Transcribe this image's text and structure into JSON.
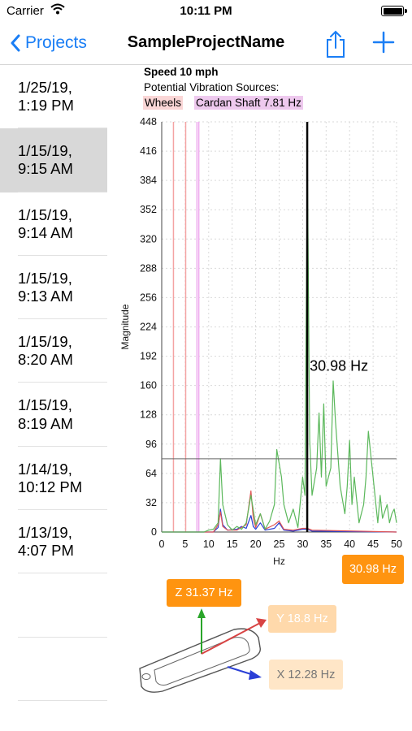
{
  "status_bar": {
    "carrier": "Carrier",
    "time": "10:11 PM"
  },
  "nav": {
    "back_label": "Projects",
    "title": "SampleProjectName"
  },
  "sidebar": {
    "items": [
      {
        "label": "1/25/19,\n1:19 PM",
        "selected": false
      },
      {
        "label": "1/15/19,\n9:15 AM",
        "selected": true
      },
      {
        "label": "1/15/19,\n9:14 AM",
        "selected": false
      },
      {
        "label": "1/15/19,\n9:13 AM",
        "selected": false
      },
      {
        "label": "1/15/19,\n8:20 AM",
        "selected": false
      },
      {
        "label": "1/15/19,\n8:19 AM",
        "selected": false
      },
      {
        "label": "1/14/19,\n10:12 PM",
        "selected": false
      },
      {
        "label": "1/13/19,\n4:07 PM",
        "selected": false
      }
    ]
  },
  "chart_header": {
    "speed": "Speed 10 mph",
    "sources_label": "Potential Vibration Sources:",
    "wheels": "Wheels",
    "cardan": "Cardan Shaft 7.81 Hz"
  },
  "badges": {
    "main": "30.98 Hz",
    "z": "Z 31.37 Hz",
    "y": "Y 18.8 Hz",
    "x": "X 12.28 Hz"
  },
  "colors": {
    "accent": "#1a7ef5",
    "orange": "#ff9410",
    "series_green": "#5cb85c",
    "series_red": "#e05555",
    "series_blue": "#2a3fd6",
    "wheel_line": "#f4a3a3",
    "cardan_line": "#eeaaee"
  },
  "chart_data": {
    "type": "line",
    "xlabel": "Hz",
    "ylabel": "Magnitude",
    "xlim": [
      0,
      50
    ],
    "ylim": [
      0,
      448
    ],
    "x_ticks": [
      0,
      5,
      10,
      15,
      20,
      25,
      30,
      35,
      40,
      45,
      50
    ],
    "y_ticks": [
      0,
      32,
      64,
      96,
      128,
      160,
      192,
      224,
      256,
      288,
      320,
      352,
      384,
      416,
      448
    ],
    "threshold": 80,
    "marker_x": 30.98,
    "marker_label": "30.98 Hz",
    "wheel_lines": [
      2.5,
      5.1
    ],
    "cardan_lines": [
      7.5,
      7.9
    ],
    "series": [
      {
        "color": "#5cb85c",
        "points": [
          [
            0,
            0
          ],
          [
            9,
            0
          ],
          [
            10,
            2
          ],
          [
            11,
            3
          ],
          [
            12,
            10
          ],
          [
            12.5,
            80
          ],
          [
            13,
            30
          ],
          [
            14,
            8
          ],
          [
            15,
            2
          ],
          [
            16,
            6
          ],
          [
            17,
            3
          ],
          [
            18,
            10
          ],
          [
            19,
            40
          ],
          [
            20,
            8
          ],
          [
            21,
            20
          ],
          [
            22,
            3
          ],
          [
            23,
            12
          ],
          [
            24,
            30
          ],
          [
            24.5,
            90
          ],
          [
            25.5,
            60
          ],
          [
            26,
            30
          ],
          [
            27,
            10
          ],
          [
            28,
            25
          ],
          [
            29,
            5
          ],
          [
            30,
            60
          ],
          [
            30.5,
            40
          ],
          [
            31,
            410
          ],
          [
            31.5,
            100
          ],
          [
            32,
            40
          ],
          [
            33,
            70
          ],
          [
            33.5,
            130
          ],
          [
            34,
            60
          ],
          [
            34.5,
            140
          ],
          [
            35,
            50
          ],
          [
            36,
            70
          ],
          [
            36.5,
            165
          ],
          [
            37,
            120
          ],
          [
            38,
            50
          ],
          [
            39,
            20
          ],
          [
            39.5,
            50
          ],
          [
            40,
            100
          ],
          [
            40.5,
            30
          ],
          [
            41,
            60
          ],
          [
            42,
            10
          ],
          [
            43,
            30
          ],
          [
            43.5,
            60
          ],
          [
            44,
            110
          ],
          [
            45,
            60
          ],
          [
            46,
            10
          ],
          [
            46.5,
            40
          ],
          [
            47,
            15
          ],
          [
            48,
            30
          ],
          [
            48.5,
            10
          ],
          [
            49,
            20
          ],
          [
            49.5,
            25
          ],
          [
            50,
            10
          ]
        ]
      },
      {
        "color": "#e05555",
        "points": [
          [
            0,
            0
          ],
          [
            11,
            0
          ],
          [
            12,
            8
          ],
          [
            12.5,
            22
          ],
          [
            13,
            6
          ],
          [
            14,
            2
          ],
          [
            16,
            2
          ],
          [
            17,
            5
          ],
          [
            18,
            8
          ],
          [
            19,
            45
          ],
          [
            19.5,
            15
          ],
          [
            20,
            5
          ],
          [
            21,
            20
          ],
          [
            22,
            3
          ],
          [
            24,
            8
          ],
          [
            25,
            12
          ],
          [
            26,
            3
          ],
          [
            28,
            2
          ],
          [
            30,
            4
          ],
          [
            31,
            4
          ],
          [
            32,
            2
          ],
          [
            50,
            0
          ]
        ]
      },
      {
        "color": "#2a3fd6",
        "points": [
          [
            0,
            0
          ],
          [
            11,
            0
          ],
          [
            12,
            5
          ],
          [
            12.5,
            25
          ],
          [
            13,
            8
          ],
          [
            14,
            2
          ],
          [
            16,
            3
          ],
          [
            17,
            6
          ],
          [
            18,
            4
          ],
          [
            19,
            18
          ],
          [
            19.5,
            6
          ],
          [
            20,
            3
          ],
          [
            21,
            10
          ],
          [
            22,
            2
          ],
          [
            24,
            4
          ],
          [
            25,
            10
          ],
          [
            26,
            2
          ],
          [
            28,
            1
          ],
          [
            30,
            3
          ],
          [
            31,
            3
          ],
          [
            32,
            1
          ],
          [
            50,
            0
          ]
        ]
      }
    ]
  }
}
